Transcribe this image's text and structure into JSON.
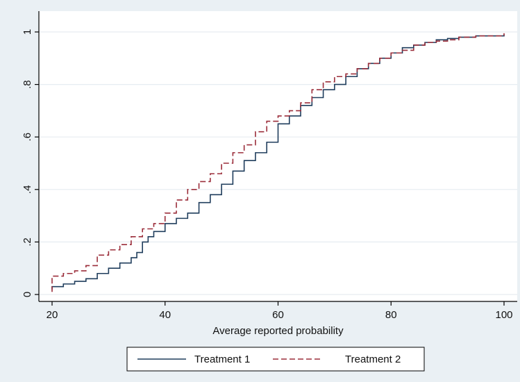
{
  "chart_data": {
    "type": "line",
    "title": "",
    "xlabel": "Average reported probability",
    "ylabel": "",
    "xlim": [
      20,
      100
    ],
    "ylim": [
      0,
      1
    ],
    "grid": true,
    "legend_position": "bottom",
    "xticks": [
      20,
      40,
      60,
      80,
      100
    ],
    "xtick_labels": [
      "20",
      "40",
      "60",
      "80",
      "100"
    ],
    "yticks": [
      0,
      0.2,
      0.4,
      0.6,
      0.8,
      1
    ],
    "ytick_labels": [
      "0",
      ".2",
      ".4",
      ".6",
      ".8",
      "1"
    ],
    "colors": {
      "background": "#eaf0f4",
      "plot_bg": "#ffffff",
      "grid": "#e6ecf1",
      "axis": "#000000"
    },
    "series": [
      {
        "name": "Treatment 1",
        "color": "#1f3d5c",
        "style": "solid",
        "points": [
          [
            20,
            0.02
          ],
          [
            20,
            0.03
          ],
          [
            22,
            0.04
          ],
          [
            24,
            0.05
          ],
          [
            26,
            0.06
          ],
          [
            28,
            0.08
          ],
          [
            30,
            0.1
          ],
          [
            32,
            0.12
          ],
          [
            34,
            0.14
          ],
          [
            35,
            0.16
          ],
          [
            36,
            0.2
          ],
          [
            37,
            0.22
          ],
          [
            38,
            0.24
          ],
          [
            40,
            0.27
          ],
          [
            42,
            0.29
          ],
          [
            44,
            0.31
          ],
          [
            46,
            0.35
          ],
          [
            48,
            0.38
          ],
          [
            50,
            0.42
          ],
          [
            52,
            0.47
          ],
          [
            54,
            0.51
          ],
          [
            56,
            0.54
          ],
          [
            58,
            0.58
          ],
          [
            60,
            0.65
          ],
          [
            62,
            0.68
          ],
          [
            64,
            0.72
          ],
          [
            66,
            0.75
          ],
          [
            68,
            0.78
          ],
          [
            70,
            0.8
          ],
          [
            72,
            0.83
          ],
          [
            74,
            0.86
          ],
          [
            76,
            0.88
          ],
          [
            78,
            0.9
          ],
          [
            80,
            0.92
          ],
          [
            82,
            0.94
          ],
          [
            84,
            0.95
          ],
          [
            86,
            0.96
          ],
          [
            88,
            0.97
          ],
          [
            90,
            0.975
          ],
          [
            92,
            0.98
          ],
          [
            95,
            0.985
          ],
          [
            100,
            0.99
          ]
        ]
      },
      {
        "name": "Treatment 2",
        "color": "#9b2d3a",
        "style": "dashed",
        "points": [
          [
            20,
            0.01
          ],
          [
            20,
            0.07
          ],
          [
            22,
            0.08
          ],
          [
            24,
            0.09
          ],
          [
            26,
            0.11
          ],
          [
            28,
            0.15
          ],
          [
            30,
            0.17
          ],
          [
            32,
            0.19
          ],
          [
            34,
            0.22
          ],
          [
            36,
            0.25
          ],
          [
            38,
            0.27
          ],
          [
            40,
            0.31
          ],
          [
            42,
            0.36
          ],
          [
            44,
            0.4
          ],
          [
            46,
            0.43
          ],
          [
            48,
            0.46
          ],
          [
            50,
            0.5
          ],
          [
            52,
            0.54
          ],
          [
            54,
            0.57
          ],
          [
            56,
            0.62
          ],
          [
            58,
            0.66
          ],
          [
            60,
            0.68
          ],
          [
            62,
            0.7
          ],
          [
            64,
            0.73
          ],
          [
            66,
            0.78
          ],
          [
            68,
            0.81
          ],
          [
            70,
            0.83
          ],
          [
            72,
            0.84
          ],
          [
            74,
            0.86
          ],
          [
            76,
            0.88
          ],
          [
            78,
            0.9
          ],
          [
            80,
            0.92
          ],
          [
            82,
            0.93
          ],
          [
            84,
            0.95
          ],
          [
            86,
            0.96
          ],
          [
            88,
            0.965
          ],
          [
            90,
            0.97
          ],
          [
            92,
            0.98
          ],
          [
            95,
            0.985
          ],
          [
            100,
            0.995
          ]
        ]
      }
    ]
  }
}
